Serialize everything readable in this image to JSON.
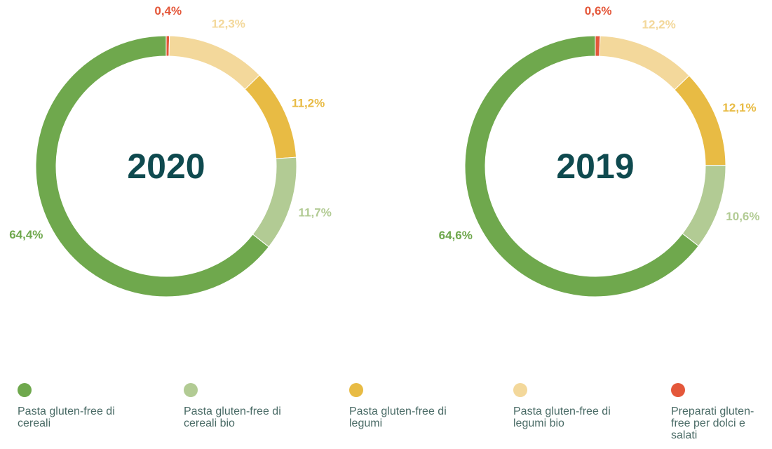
{
  "chart_data": [
    {
      "type": "pie",
      "title": "2020",
      "categories": [
        "Pasta gluten-free di cereali",
        "Pasta gluten-free di cereali bio",
        "Pasta gluten-free di legumi",
        "Pasta gluten-free di legumi bio",
        "Preparati gluten-free per dolci e salati"
      ],
      "values": [
        64.4,
        11.7,
        11.2,
        12.3,
        0.4
      ],
      "value_labels": [
        "64,4%",
        "11,7%",
        "11,2%",
        "12,3%",
        "0,4%"
      ],
      "colors": [
        "#6fa84d",
        "#b2cb94",
        "#e8bb44",
        "#f3d89b",
        "#e4573a"
      ]
    },
    {
      "type": "pie",
      "title": "2019",
      "categories": [
        "Pasta gluten-free di cereali",
        "Pasta gluten-free di cereali bio",
        "Pasta gluten-free di legumi",
        "Pasta gluten-free di legumi bio",
        "Preparati gluten-free per dolci e salati"
      ],
      "values": [
        64.6,
        10.6,
        12.1,
        12.2,
        0.6
      ],
      "value_labels": [
        "64,6%",
        "10,6%",
        "12,1%",
        "12,2%",
        "0,6%"
      ],
      "colors": [
        "#6fa84d",
        "#b2cb94",
        "#e8bb44",
        "#f3d89b",
        "#e4573a"
      ]
    }
  ]
}
